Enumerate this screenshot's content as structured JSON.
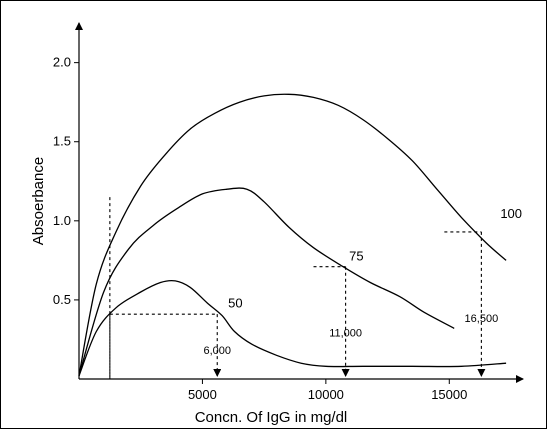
{
  "chart_data": {
    "type": "line",
    "title": "",
    "xlabel": "Concn. Of IgG in mg/dl",
    "ylabel": "Absoerbance",
    "xlim": [
      0,
      17500
    ],
    "ylim": [
      0,
      2.2
    ],
    "x_ticks": [
      5000,
      10000,
      15000
    ],
    "x_tick_labels": [
      "5000",
      "10000",
      "15000"
    ],
    "y_ticks": [
      0.5,
      1.0,
      1.5,
      2.0
    ],
    "y_tick_labels": [
      "0.5",
      "1.0",
      "1.5",
      "2.0"
    ],
    "grid": false,
    "series": [
      {
        "name": "100",
        "x": [
          0,
          700,
          1500,
          2500,
          3500,
          4500,
          5500,
          6500,
          7500,
          8500,
          9500,
          10500,
          11500,
          12500,
          13500,
          14500,
          15500,
          16500,
          17300
        ],
        "y": [
          0.02,
          0.6,
          0.93,
          1.22,
          1.42,
          1.58,
          1.68,
          1.75,
          1.79,
          1.8,
          1.78,
          1.73,
          1.64,
          1.52,
          1.38,
          1.2,
          1.02,
          0.86,
          0.75
        ]
      },
      {
        "name": "75",
        "x": [
          0,
          1000,
          2000,
          3000,
          4000,
          5000,
          6000,
          6800,
          7500,
          8500,
          9500,
          10700,
          11800,
          13000,
          14000,
          15200
        ],
        "y": [
          0.02,
          0.55,
          0.82,
          0.97,
          1.08,
          1.17,
          1.2,
          1.2,
          1.12,
          0.96,
          0.83,
          0.71,
          0.61,
          0.52,
          0.42,
          0.32
        ]
      },
      {
        "name": "50",
        "x": [
          0,
          700,
          1500,
          2500,
          3300,
          3900,
          4500,
          5200,
          5800,
          6300,
          7000,
          8000,
          9000,
          10000,
          11500,
          13500,
          15500,
          17300
        ],
        "y": [
          0.02,
          0.3,
          0.45,
          0.55,
          0.61,
          0.62,
          0.58,
          0.48,
          0.4,
          0.3,
          0.22,
          0.15,
          0.1,
          0.08,
          0.08,
          0.08,
          0.08,
          0.1
        ]
      }
    ],
    "annotations": [
      {
        "text": "6,000",
        "x": 5600,
        "y": 0.41
      },
      {
        "text": "11,000",
        "x": 10800,
        "y": 0.71
      },
      {
        "text": "16,500",
        "x": 16300,
        "y": 0.93
      }
    ]
  }
}
